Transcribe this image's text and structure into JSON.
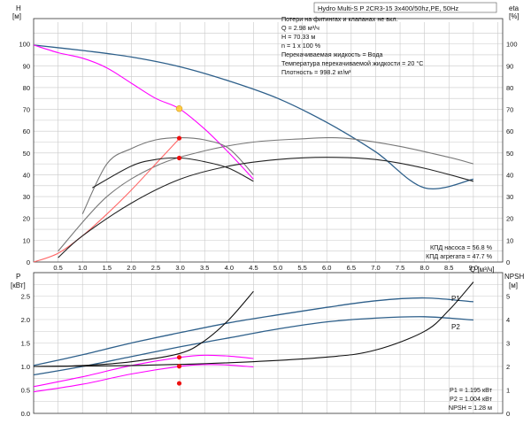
{
  "title": "Hydro Multi-S P 2CR3-15 3x400/50hz,PE, 50Hz",
  "info_lines": [
    "Потери на фитингах и клапанах не вкл.",
    "Q = 2.98 м³/ч",
    "H = 70.33 м",
    "n = 1 x 100 %",
    "Перекачиваемая жидкость = Вода",
    "Температура перекачиваемой жидкости = 20 °C",
    "Плотность = 998.2 кг/м³"
  ],
  "efficiency_lines": [
    "КПД насоса = 56.8 %",
    "КПД агрегата = 47.7 %"
  ],
  "power_lines": [
    "P1 = 1.195 кВт",
    "P2 = 1.004 кВт",
    "NPSH = 1.28 м"
  ],
  "chart_data": [
    {
      "type": "line",
      "name": "head-efficiency",
      "left_axis": {
        "unit_top": "H",
        "unit_bottom": "[м]",
        "ylim": [
          0,
          110
        ],
        "ticks": [
          0,
          10,
          20,
          30,
          40,
          50,
          60,
          70,
          80,
          90,
          100
        ]
      },
      "right_axis": {
        "unit_top": "eta",
        "unit_bottom": "[%]",
        "ylim": [
          0,
          110
        ],
        "ticks": [
          0,
          10,
          20,
          30,
          40,
          50,
          60,
          70,
          80,
          90,
          100
        ]
      },
      "x_axis": {
        "label": "Q [м³/ч]",
        "xlim": [
          0,
          9.6
        ],
        "ticks": [
          0.5,
          1.0,
          1.5,
          2.0,
          2.5,
          3.0,
          3.5,
          4.0,
          4.5,
          5.0,
          5.5,
          6.0,
          6.5,
          7.0,
          7.5,
          8.0,
          8.5,
          9.0
        ]
      },
      "grid": true,
      "series": [
        {
          "key": "h_max",
          "color": "#2d5f8a",
          "x": [
            0,
            1,
            2,
            3,
            4,
            5,
            6,
            7,
            8,
            9
          ],
          "y": [
            99.5,
            97,
            94,
            89.5,
            83,
            75,
            64,
            50.5,
            34,
            38
          ]
        },
        {
          "key": "h_pump",
          "color": "#ff00ff",
          "x": [
            0,
            0.5,
            1.0,
            1.5,
            2.0,
            2.5,
            2.98,
            3.5,
            4.0,
            4.5
          ],
          "y": [
            99.5,
            96,
            93.5,
            89,
            82,
            75,
            70.33,
            61,
            50,
            38
          ]
        },
        {
          "key": "eta_max",
          "color": "#777777",
          "x": [
            0.5,
            1.5,
            2.5,
            3.5,
            4.5,
            5.5,
            6.0,
            6.5,
            7.5,
            8.5,
            9.0
          ],
          "y": [
            5,
            30,
            44,
            51,
            55,
            56.5,
            57,
            56.5,
            53,
            48,
            45
          ]
        },
        {
          "key": "eta_min",
          "color": "#777777",
          "x": [
            1.0,
            1.5,
            2.0,
            2.5,
            3.0,
            3.5,
            4.0,
            4.5
          ],
          "y": [
            22,
            45,
            52,
            56,
            57,
            56,
            52,
            40
          ]
        },
        {
          "key": "eta_pump",
          "color": "#ff6666",
          "x": [
            0,
            0.5,
            1.0,
            1.5,
            2.0,
            2.5,
            3.0
          ],
          "y": [
            0,
            4,
            12,
            22,
            33,
            45,
            57
          ]
        },
        {
          "key": "eta_unit_max",
          "color": "#222222",
          "x": [
            0.5,
            1.0,
            2.0,
            3.0,
            4.0,
            5.0,
            6.0,
            7.0,
            8.0,
            9.0
          ],
          "y": [
            2,
            12,
            27,
            38,
            44,
            47,
            48,
            47,
            43,
            37
          ]
        },
        {
          "key": "eta_unit_min",
          "color": "#222222",
          "x": [
            1.2,
            2.0,
            2.5,
            3.0,
            3.5,
            4.0,
            4.5
          ],
          "y": [
            34,
            44,
            47,
            47.7,
            46,
            43,
            37
          ]
        }
      ],
      "operating_points": [
        {
          "x": 2.98,
          "y": 70.33,
          "color": "#ffcc44"
        },
        {
          "x": 2.98,
          "y": 56.8,
          "color": "#ee1111"
        },
        {
          "x": 2.98,
          "y": 47.7,
          "color": "#ee1111"
        }
      ]
    },
    {
      "type": "line",
      "name": "power-npsh",
      "left_axis": {
        "unit_top": "P",
        "unit_bottom": "[кВт]",
        "ylim": [
          0,
          3.0
        ],
        "ticks": [
          0,
          0.5,
          1.0,
          1.5,
          2.0,
          2.5
        ]
      },
      "right_axis": {
        "unit_top": "NPSH",
        "unit_bottom": "[м]",
        "ylim": [
          0,
          6
        ],
        "ticks": [
          0,
          1,
          2,
          3,
          4,
          5
        ]
      },
      "x_axis": {
        "xlim": [
          0,
          9.6
        ]
      },
      "grid": true,
      "series": [
        {
          "key": "p1",
          "label": "P1",
          "color": "#2d5f8a",
          "x": [
            0,
            1,
            2,
            3,
            4,
            5,
            6,
            7,
            8,
            9
          ],
          "y": [
            1.02,
            1.25,
            1.5,
            1.72,
            1.93,
            2.1,
            2.26,
            2.4,
            2.46,
            2.38
          ]
        },
        {
          "key": "p2",
          "label": "P2",
          "color": "#2d5f8a",
          "x": [
            0,
            1,
            2,
            3,
            4,
            5,
            6,
            7,
            8,
            9
          ],
          "y": [
            0.82,
            1.0,
            1.21,
            1.42,
            1.61,
            1.8,
            1.95,
            2.03,
            2.06,
            1.99
          ]
        },
        {
          "key": "p1_pump",
          "color": "#ff00ff",
          "x": [
            0,
            1,
            2,
            3,
            3.5,
            4,
            4.5
          ],
          "y": [
            0.57,
            0.78,
            1.02,
            1.195,
            1.24,
            1.22,
            1.17
          ]
        },
        {
          "key": "p2_pump",
          "color": "#ff00ff",
          "x": [
            0,
            1,
            2,
            3,
            3.5,
            4,
            4.5
          ],
          "y": [
            0.46,
            0.62,
            0.84,
            1.004,
            1.04,
            1.03,
            0.99
          ]
        },
        {
          "key": "npsh_pump",
          "color": "#111111",
          "x": [
            0,
            1,
            2,
            3,
            3.5,
            4,
            4.5
          ],
          "y": [
            1.0,
            1.02,
            1.1,
            1.28,
            1.55,
            2.0,
            2.6
          ]
        },
        {
          "key": "npsh_max",
          "color": "#111111",
          "x": [
            0,
            2,
            4,
            6,
            7,
            8,
            8.5,
            9.0
          ],
          "y": [
            1.0,
            1.02,
            1.08,
            1.2,
            1.35,
            1.75,
            2.2,
            2.8
          ]
        }
      ],
      "operating_points": [
        {
          "x": 2.98,
          "y": 1.195,
          "color": "#ee1111"
        },
        {
          "x": 2.98,
          "y": 1.004,
          "color": "#ee1111"
        },
        {
          "x": 2.98,
          "y": 0.64,
          "color": "#ee1111"
        }
      ]
    }
  ]
}
